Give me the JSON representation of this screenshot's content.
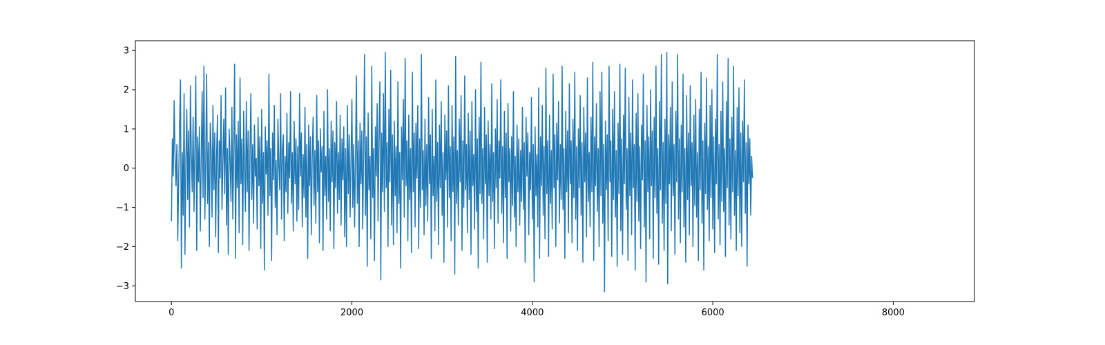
{
  "chart_data": {
    "type": "line",
    "title": "",
    "xlabel": "",
    "ylabel": "",
    "xlim": [
      -400,
      8900
    ],
    "ylim": [
      -3.4,
      3.25
    ],
    "x_ticks": [
      0,
      2000,
      4000,
      6000,
      8000
    ],
    "x_tick_labels": [
      "0",
      "2000",
      "4000",
      "6000",
      "8000"
    ],
    "y_ticks": [
      -3,
      -2,
      -1,
      0,
      1,
      2,
      3
    ],
    "y_tick_labels": [
      "−3",
      "−2",
      "−1",
      "0",
      "1",
      "2",
      "3"
    ],
    "grid": false,
    "legend": "none",
    "series_color": "#1f77b4",
    "series": [
      {
        "x_start": 0,
        "x_step": 10,
        "values": [
          -1.35,
          0.75,
          -0.2,
          1.72,
          0.3,
          -0.45,
          0.6,
          -1.85,
          -0.3,
          1.1,
          2.25,
          -2.55,
          0.4,
          -1.2,
          1.9,
          -2.2,
          0.2,
          1.5,
          -0.8,
          0.95,
          -1.5,
          2.1,
          0.35,
          -0.6,
          1.3,
          -1.1,
          0.55,
          2.35,
          -2.1,
          0.8,
          -0.35,
          1.05,
          -1.6,
          0.25,
          1.95,
          -0.75,
          2.6,
          -1.3,
          0.15,
          2.4,
          -0.9,
          0.65,
          -2.0,
          1.15,
          0.45,
          -1.25,
          1.6,
          -0.55,
          0.9,
          -1.75,
          0.3,
          1.35,
          -2.15,
          0.7,
          -0.25,
          1.85,
          -1.05,
          0.1,
          1.25,
          -0.65,
          2.05,
          -1.45,
          0.5,
          -2.2,
          1.0,
          0.2,
          -0.85,
          1.55,
          -1.3,
          0.4,
          2.65,
          -2.3,
          0.85,
          -0.5,
          1.2,
          -1.65,
          2.3,
          -0.4,
          0.75,
          -1.95,
          1.45,
          0.05,
          -1.1,
          1.7,
          -0.6,
          0.95,
          -2.1,
          0.35,
          1.9,
          -0.8,
          0.6,
          -1.4,
          1.1,
          -0.2,
          0.25,
          -1.55,
          1.3,
          -0.45,
          0.8,
          -2.05,
          1.5,
          -0.9,
          0.4,
          -2.6,
          1.05,
          -0.15,
          0.7,
          -1.2,
          2.4,
          -0.7,
          0.5,
          -2.35,
          0.9,
          -0.3,
          1.6,
          -1.0,
          0.2,
          -1.7,
          1.25,
          0.1,
          -0.55,
          1.9,
          -1.3,
          0.45,
          0.85,
          -1.85,
          0.3,
          -0.6,
          1.4,
          -1.15,
          0.65,
          -0.25,
          1.95,
          -0.9,
          0.4,
          -1.6,
          1.2,
          -0.4,
          0.75,
          -1.35,
          0.55,
          -1.05,
          1.9,
          -0.2,
          0.9,
          -1.5,
          0.35,
          -0.75,
          1.55,
          -1.25,
          0.6,
          -2.3,
          1.1,
          -0.45,
          0.8,
          -1.7,
          0.25,
          1.3,
          -0.95,
          0.45,
          -1.4,
          1.85,
          -0.6,
          0.7,
          -1.9,
          1.0,
          -0.1,
          0.55,
          -2.1,
          1.45,
          -0.7,
          0.3,
          -1.3,
          2.0,
          -0.85,
          0.5,
          -1.6,
          1.2,
          -0.35,
          0.95,
          -2.05,
          0.65,
          -0.5,
          1.7,
          -1.15,
          0.4,
          -0.8,
          1.35,
          -1.45,
          0.75,
          -0.3,
          1.05,
          -1.75,
          0.5,
          -2.0,
          1.6,
          -0.65,
          0.85,
          -1.25,
          0.2,
          1.75,
          -1.0,
          0.6,
          -1.5,
          0.35,
          2.35,
          -0.9,
          0.7,
          -2.0,
          1.15,
          -0.4,
          0.95,
          -1.55,
          0.45,
          2.9,
          -1.2,
          0.8,
          -2.5,
          1.4,
          -0.55,
          0.3,
          -1.8,
          2.6,
          -0.75,
          0.5,
          -2.35,
          1.05,
          -0.2,
          1.65,
          -1.35,
          0.75,
          2.2,
          -2.85,
          0.9,
          -0.6,
          1.9,
          -1.1,
          2.95,
          -0.5,
          0.65,
          -2.0,
          1.5,
          -0.35,
          2.5,
          -1.45,
          0.85,
          -1.95,
          1.2,
          -0.7,
          0.55,
          -1.65,
          2.2,
          -0.9,
          0.4,
          -2.55,
          1.05,
          -0.3,
          1.75,
          -1.25,
          2.8,
          -0.45,
          0.7,
          -1.85,
          1.35,
          -0.8,
          0.5,
          -2.15,
          2.45,
          -0.6,
          0.9,
          -1.5,
          1.15,
          -0.25,
          1.6,
          -2.05,
          0.75,
          -1.0,
          2.9,
          -0.55,
          0.45,
          -1.7,
          1.25,
          -0.95,
          0.6,
          -1.35,
          1.8,
          -0.4,
          0.85,
          -2.3,
          1.5,
          -0.7,
          0.3,
          -1.6,
          2.25,
          -0.85,
          0.65,
          -1.95,
          1.1,
          -0.5,
          1.7,
          -1.2,
          0.4,
          -2.4,
          1.35,
          -0.3,
          0.95,
          -1.5,
          2.1,
          -0.75,
          0.55,
          -1.85,
          1.6,
          -0.6,
          0.8,
          -2.7,
          2.85,
          -0.9,
          0.45,
          -1.45,
          1.25,
          -0.35,
          1.85,
          -2.1,
          0.7,
          -1.0,
          2.35,
          -0.55,
          0.6,
          -1.65,
          1.4,
          -0.8,
          0.95,
          -2.2,
          1.7,
          -0.45,
          0.35,
          -1.55,
          2.0,
          -1.1,
          0.75,
          -2.55,
          1.3,
          -0.65,
          2.7,
          -0.9,
          0.5,
          -1.8,
          1.55,
          -0.4,
          0.85,
          -2.4,
          1.2,
          -0.7,
          0.6,
          -1.3,
          2.15,
          -0.85,
          0.4,
          -2.05,
          1.0,
          -0.5,
          1.75,
          -1.4,
          0.7,
          -0.25,
          2.25,
          -1.15,
          0.55,
          -1.9,
          1.45,
          -0.75,
          0.9,
          -2.3,
          1.65,
          -0.35,
          0.5,
          -1.6,
          0.8,
          -0.95,
          1.95,
          -1.25,
          0.3,
          -2.0,
          1.1,
          -0.6,
          0.75,
          -1.45,
          0.45,
          -0.85,
          1.55,
          -1.05,
          0.65,
          -2.4,
          1.3,
          -0.2,
          0.9,
          -1.7,
          0.4,
          -0.55,
          1.8,
          -1.3,
          0.6,
          -2.9,
          1.05,
          -0.7,
          0.35,
          -1.5,
          2.05,
          -2.3,
          0.8,
          -0.45,
          1.6,
          -1.2,
          0.55,
          -1.8,
          2.55,
          -0.65,
          0.7,
          -2.25,
          1.35,
          -0.9,
          0.45,
          -1.55,
          2.4,
          -0.5,
          0.85,
          -2.0,
          1.15,
          -0.3,
          1.7,
          -1.4,
          0.6,
          -0.8,
          2.6,
          -1.05,
          0.5,
          -2.3,
          1.45,
          -0.6,
          0.95,
          -1.65,
          2.15,
          -0.4,
          0.7,
          -1.9,
          1.25,
          -0.75,
          2.45,
          -1.3,
          0.55,
          -2.1,
          1.0,
          -0.5,
          1.85,
          -1.2,
          0.65,
          -2.4,
          1.55,
          -0.35,
          0.9,
          -1.75,
          2.3,
          -0.85,
          0.4,
          -1.5,
          1.3,
          -0.6,
          2.7,
          -2.35,
          0.8,
          -0.45,
          1.65,
          -1.1,
          0.5,
          -2.0,
          1.95,
          -0.7,
          2.45,
          -1.4,
          0.6,
          -3.15,
          1.2,
          -0.55,
          0.85,
          -1.85,
          2.6,
          -0.35,
          0.7,
          -2.25,
          1.5,
          -0.8,
          1.95,
          -1.25,
          0.45,
          -2.5,
          1.15,
          -0.65,
          2.65,
          -1.6,
          0.75,
          -2.2,
          1.35,
          -0.4,
          2.55,
          -1.05,
          0.5,
          -2.35,
          1.8,
          -0.7,
          0.9,
          -1.7,
          2.25,
          -0.5,
          0.6,
          -2.6,
          1.4,
          -0.85,
          1.9,
          -1.35,
          0.55,
          -2.05,
          1.1,
          -0.3,
          2.4,
          -1.5,
          0.7,
          -2.9,
          1.6,
          -0.6,
          0.8,
          -1.8,
          2.0,
          -0.45,
          0.95,
          -2.3,
          1.3,
          -0.75,
          2.6,
          -1.15,
          0.5,
          -2.45,
          1.7,
          -0.55,
          2.9,
          -1.4,
          0.65,
          -2.1,
          1.25,
          -0.9,
          2.95,
          -2.95,
          0.85,
          -0.4,
          1.55,
          -1.6,
          2.2,
          -0.7,
          0.6,
          -2.2,
          1.45,
          -0.35,
          2.9,
          -1.3,
          0.75,
          -1.9,
          1.1,
          -0.6,
          2.4,
          -1.5,
          0.5,
          -2.4,
          1.85,
          -0.8,
          0.9,
          -1.7,
          2.1,
          -0.45,
          0.65,
          -2.0,
          1.35,
          -0.95,
          1.75,
          -1.25,
          0.4,
          -2.35,
          1.5,
          -0.55,
          2.45,
          -1.4,
          0.7,
          -2.6,
          1.15,
          -0.65,
          2.3,
          -1.05,
          0.55,
          -1.85,
          1.6,
          -0.75,
          2.0,
          -1.55,
          0.8,
          -2.15,
          1.25,
          -0.4,
          2.9,
          -1.3,
          0.6,
          -1.95,
          1.45,
          -0.85,
          2.2,
          -1.1,
          0.5,
          -2.25,
          1.7,
          -0.5,
          2.8,
          -1.45,
          0.75,
          -1.8,
          1.3,
          -0.6,
          2.6,
          -1.2,
          0.45,
          -2.1,
          1.55,
          -0.7,
          2.05,
          -1.65,
          0.9,
          -2.0,
          1.2,
          -0.35,
          2.25,
          -1.15,
          0.65,
          -2.5,
          1.1,
          -0.4,
          0.75,
          -1.2,
          0.3,
          -0.25
        ]
      }
    ]
  }
}
